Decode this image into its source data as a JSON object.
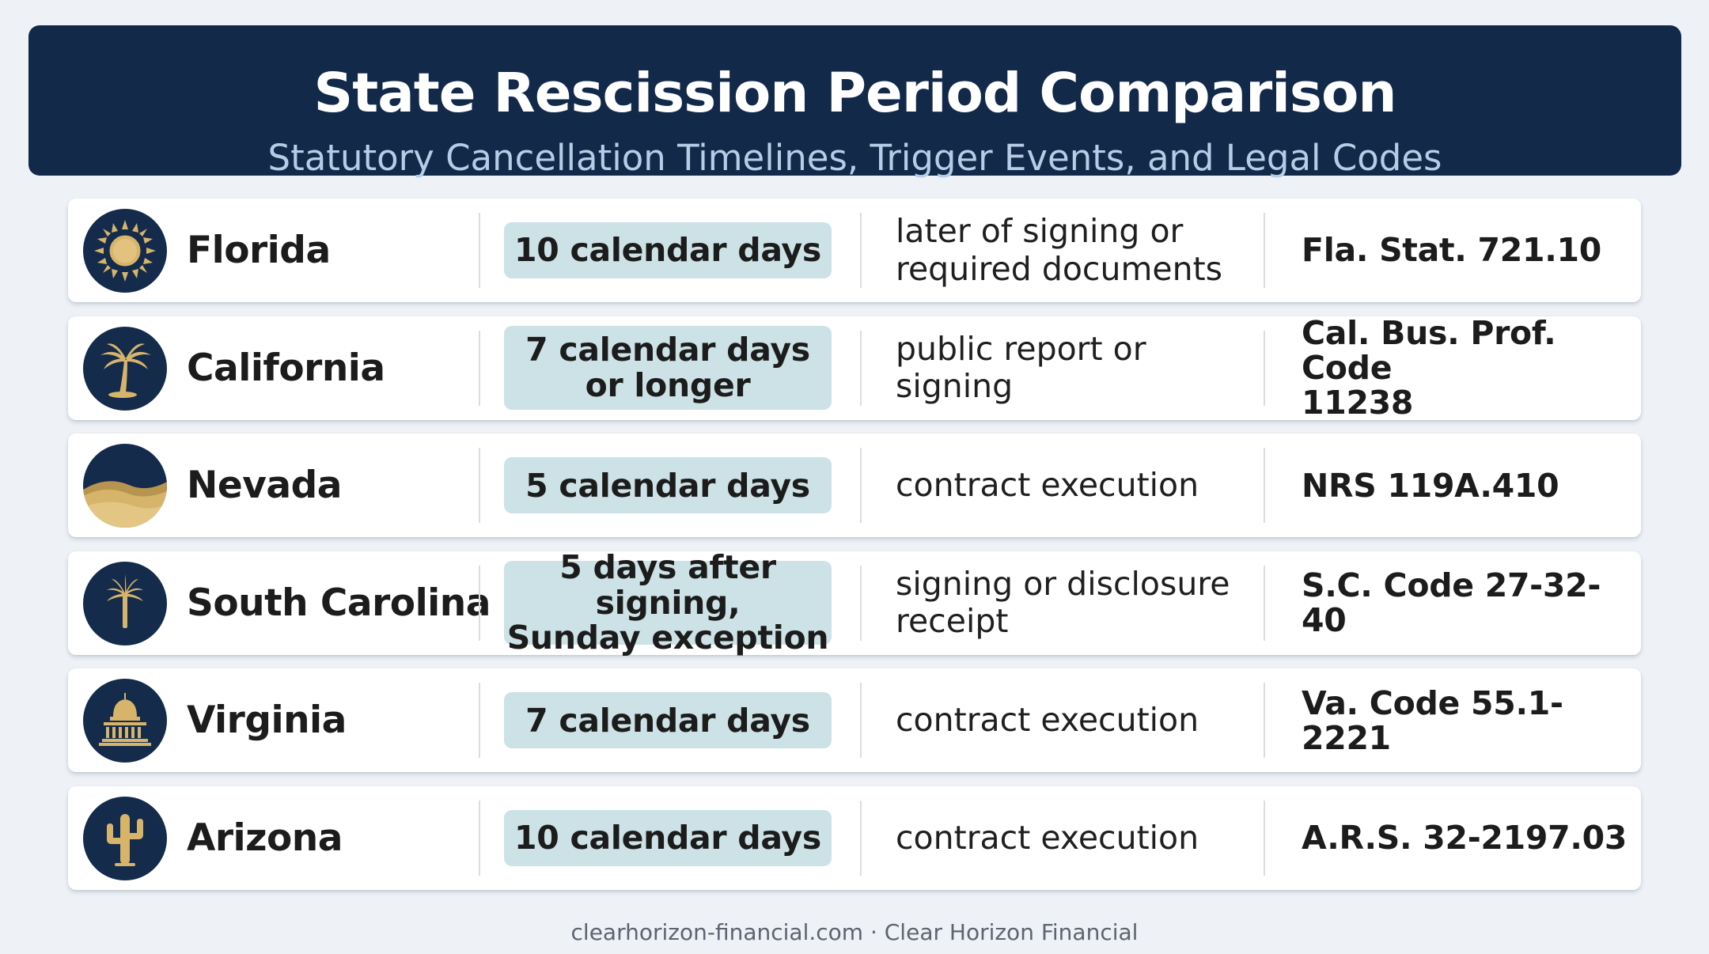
{
  "header": {
    "title": "State Rescission Period Comparison",
    "subtitle": "Statutory Cancellation Timelines, Trigger Events, and Legal Codes"
  },
  "rows": [
    {
      "state": "Florida",
      "icon": "sun-icon",
      "period": "10 calendar days",
      "trigger": "later of signing or\nrequired documents",
      "code": "Fla. Stat. 721.10"
    },
    {
      "state": "California",
      "icon": "palm-tree-icon",
      "period": "7 calendar days\nor longer",
      "trigger": "public report or\nsigning",
      "code": "Cal. Bus. Prof. Code\n11238"
    },
    {
      "state": "Nevada",
      "icon": "desert-dunes-icon",
      "period": "5 calendar days",
      "trigger": "contract execution",
      "code": "NRS 119A.410"
    },
    {
      "state": "South Carolina",
      "icon": "palmetto-tree-icon",
      "period": "5 days after signing,\nSunday exception",
      "trigger": "signing or disclosure\nreceipt",
      "code": "S.C. Code 27-32-40"
    },
    {
      "state": "Virginia",
      "icon": "capitol-building-icon",
      "period": "7 calendar days",
      "trigger": "contract execution",
      "code": "Va. Code 55.1-2221"
    },
    {
      "state": "Arizona",
      "icon": "cactus-icon",
      "period": "10 calendar days",
      "trigger": "contract execution",
      "code": "A.R.S. 32-2197.03"
    }
  ],
  "footer": "clearhorizon-financial.com · Clear Horizon Financial",
  "colors": {
    "header_bg": "#12294a",
    "icon_bg": "#142b4c",
    "icon_gold": "#d6b46a",
    "pill_bg": "#cde2e6",
    "page_bg": "#eef2f6"
  }
}
